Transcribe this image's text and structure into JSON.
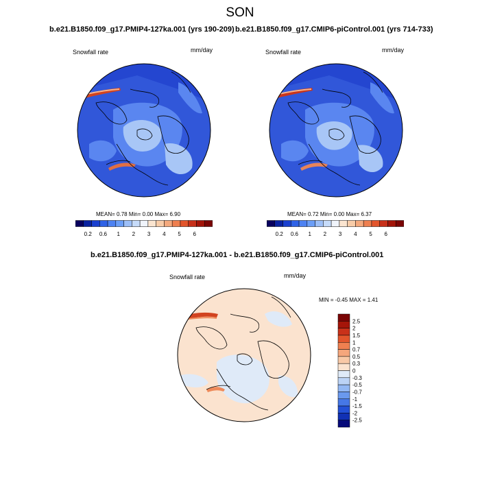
{
  "season": "SON",
  "panels": [
    {
      "title": "b.e21.B1850.f09_g17.PMIP4-127ka.001 (yrs 190-209)",
      "field_label": "Snowfall rate",
      "units": "mm/day",
      "stats": {
        "mean_label": "MEAN=",
        "mean": "0.78",
        "min_label": "Min=",
        "min": "0.00",
        "max_label": "Max=",
        "max": "6.90"
      }
    },
    {
      "title": "b.e21.B1850.f09_g17.CMIP6-piControl.001 (yrs 714-733)",
      "field_label": "Snowfall rate",
      "units": "mm/day",
      "stats": {
        "mean_label": "MEAN=",
        "mean": "0.72",
        "min_label": "Min=",
        "min": "0.00",
        "max_label": "Max=",
        "max": "6.37"
      }
    }
  ],
  "diff_panel": {
    "title": "b.e21.B1850.f09_g17.PMIP4-127ka.001 - b.e21.B1850.f09_g17.CMIP6-piControl.001",
    "field_label": "Snowfall rate",
    "units": "mm/day",
    "stats_text": "MIN = -0.45 MAX =   1.41"
  },
  "horizontal_colorbar": {
    "tick_labels": [
      "0.2",
      "0.6",
      "1",
      "2",
      "3",
      "4",
      "5",
      "6"
    ],
    "colors": [
      "#08005e",
      "#0a22a0",
      "#1a40cf",
      "#2f62e6",
      "#4d82f2",
      "#6b9ef7",
      "#9dbff7",
      "#c6dbf9",
      "#f0f4fb",
      "#fbe5d0",
      "#f8cca8",
      "#f4a97d",
      "#ee7f4f",
      "#e2552c",
      "#c7301a",
      "#a21409",
      "#7a0505"
    ]
  },
  "vertical_colorbar": {
    "tick_labels": [
      "2.5",
      "2",
      "1.5",
      "1",
      "0.7",
      "0.5",
      "0.3",
      "0",
      "-0.3",
      "-0.5",
      "-0.7",
      "-1",
      "-1.5",
      "-2",
      "-2.5"
    ],
    "colors": [
      "#7a0505",
      "#a51509",
      "#c9311a",
      "#e2552c",
      "#ef8050",
      "#f5a67c",
      "#f8c8a6",
      "#fbe3cf",
      "#dfeaf8",
      "#bcd3f6",
      "#93b8f4",
      "#6a99ee",
      "#4677e6",
      "#2350d6",
      "#1131b4",
      "#060a7a"
    ]
  },
  "map_colors": {
    "abs_ocean": "#3157d9",
    "abs_land_light": "#5a86f0",
    "abs_pale": "#a8c6f6",
    "abs_dark": "#1d3fc9",
    "abs_high": "#d2431f",
    "diff_base": "#fbe3cf",
    "diff_blue": "#dfeaf8",
    "diff_red": "#ee8a5a"
  }
}
